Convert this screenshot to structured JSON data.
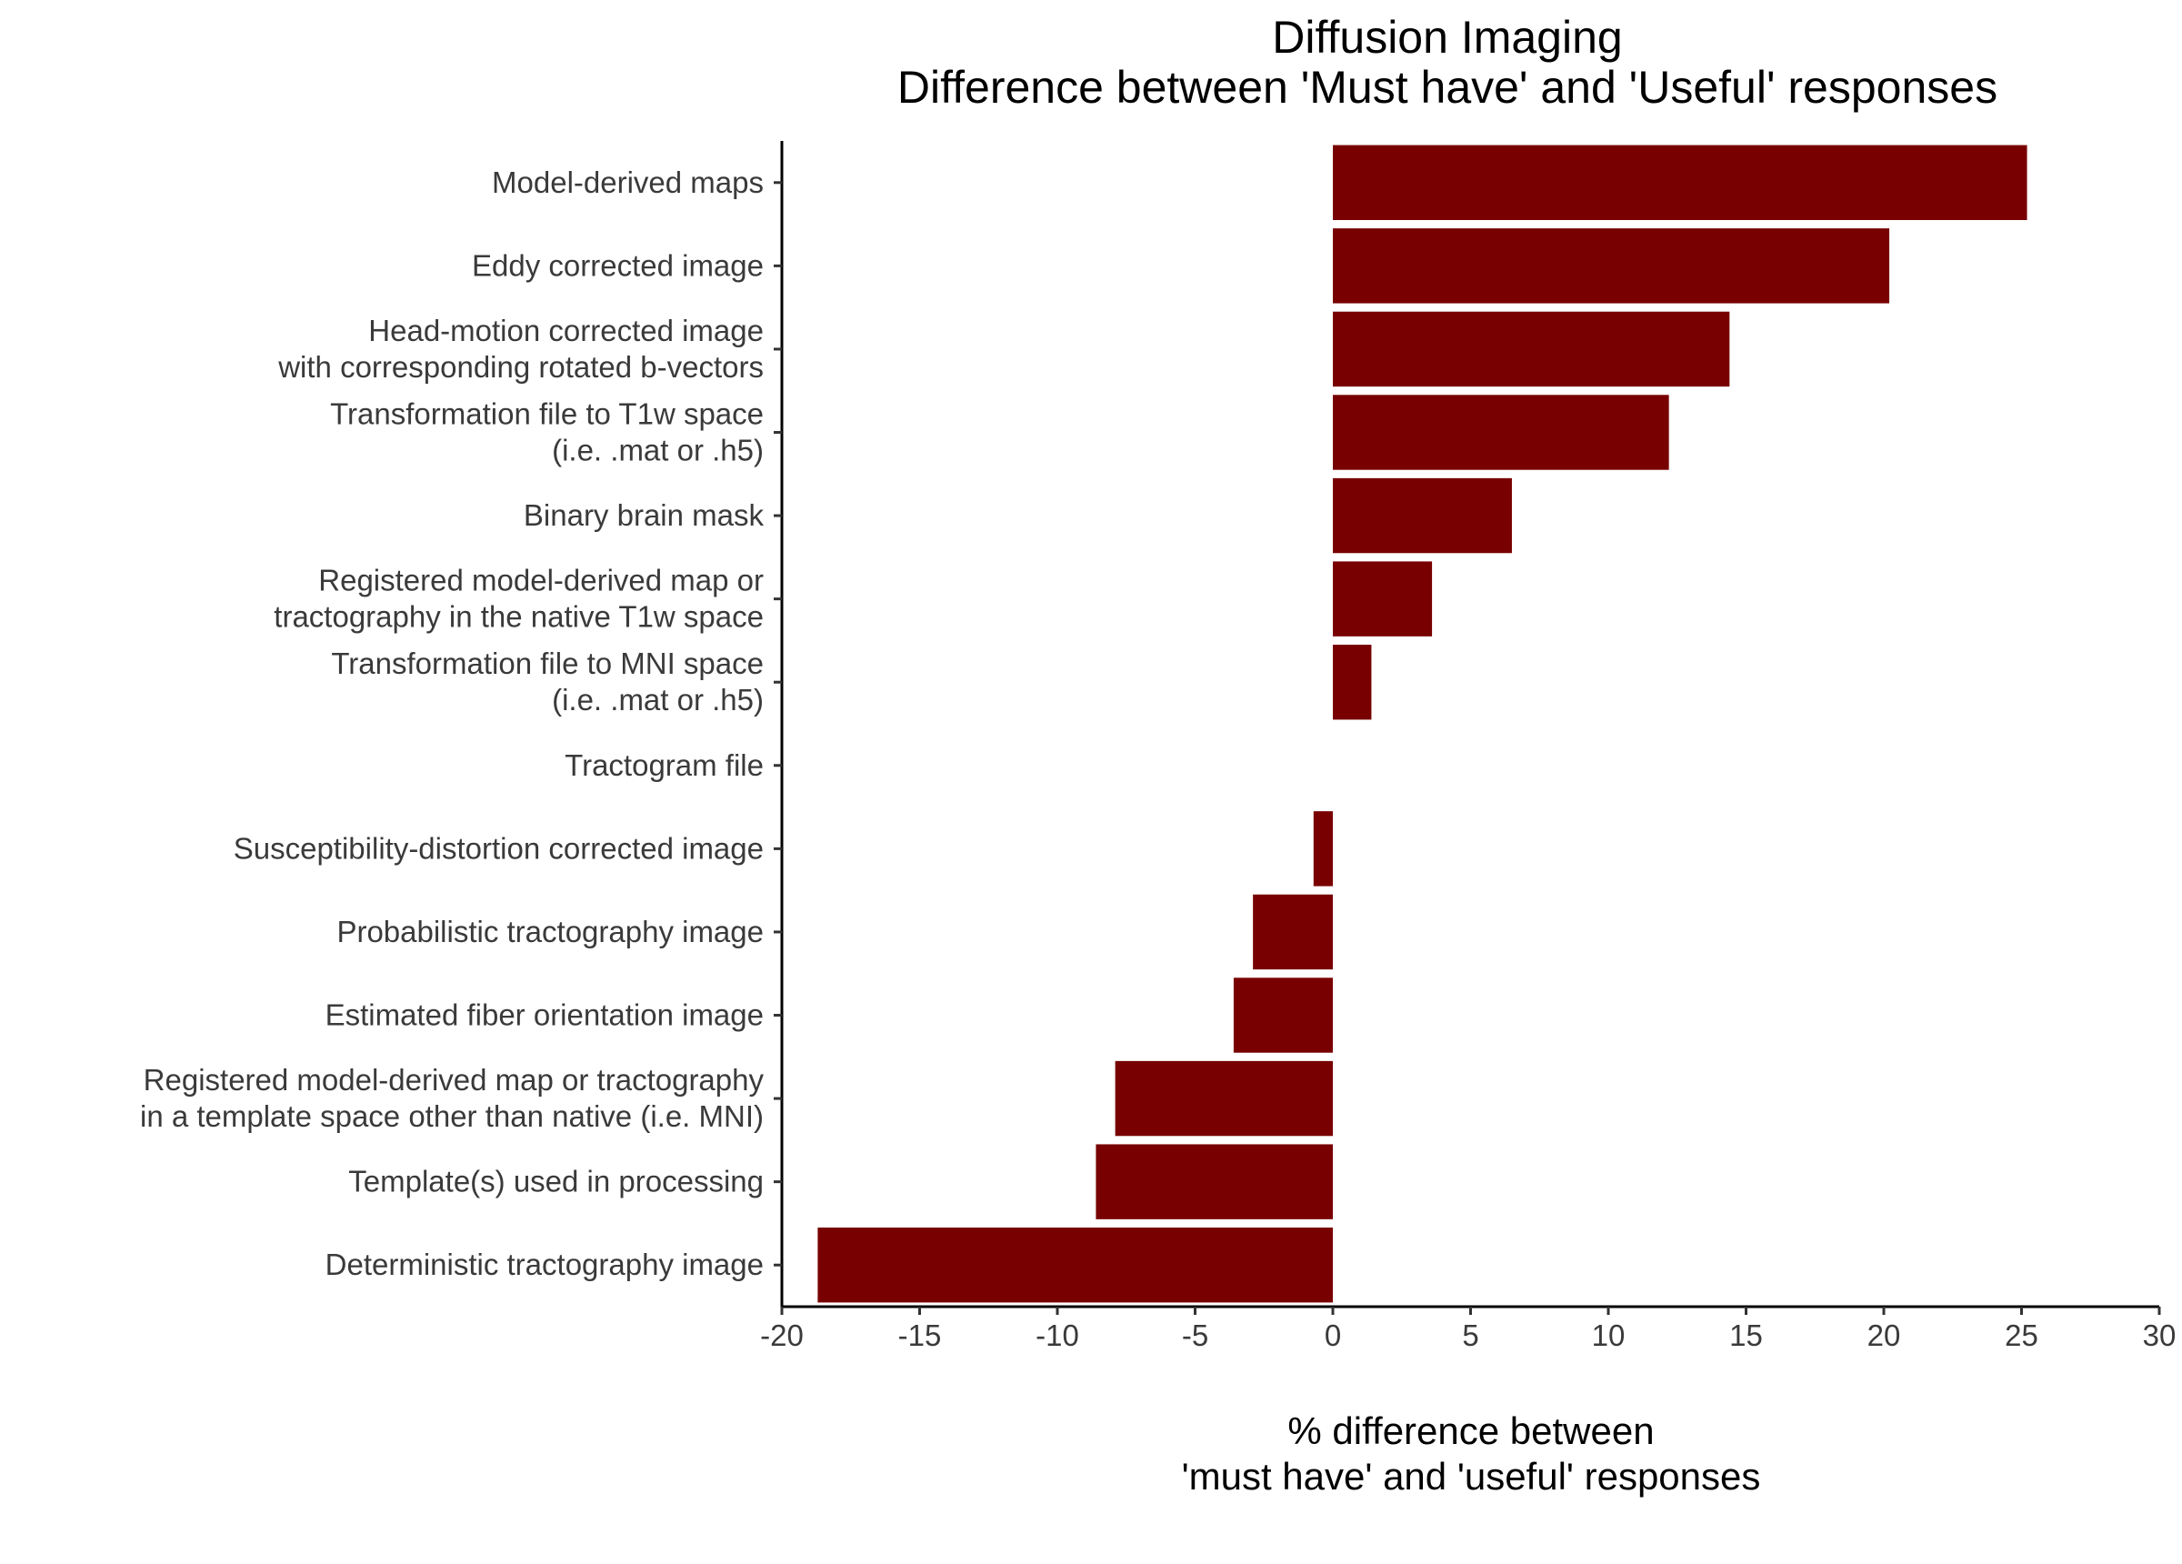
{
  "chart_data": {
    "type": "bar",
    "orientation": "horizontal",
    "title": [
      "Diffusion Imaging",
      "Difference between 'Must have' and 'Useful' responses"
    ],
    "xlabel": [
      "% difference between",
      "'must have' and 'useful' responses"
    ],
    "ylabel": "",
    "xlim": [
      -20,
      30
    ],
    "xticks": [
      -20,
      -15,
      -10,
      -5,
      0,
      5,
      10,
      15,
      20,
      25,
      30
    ],
    "grid": false,
    "legend": "none",
    "bar_color": "#780000",
    "categories": [
      [
        "Model-derived maps"
      ],
      [
        "Eddy corrected image"
      ],
      [
        "Head-motion corrected image",
        "with corresponding rotated b-vectors"
      ],
      [
        "Transformation file to T1w space",
        "(i.e. .mat or .h5)"
      ],
      [
        "Binary brain mask"
      ],
      [
        "Registered model-derived map or",
        "tractography in the native T1w space"
      ],
      [
        "Transformation file to MNI space",
        "(i.e. .mat or .h5)"
      ],
      [
        "Tractogram file"
      ],
      [
        "Susceptibility-distortion corrected image"
      ],
      [
        "Probabilistic tractography image"
      ],
      [
        "Estimated fiber orientation image"
      ],
      [
        "Registered model-derived map or tractography",
        "in a template space other than native (i.e. MNI)"
      ],
      [
        "Template(s) used in processing"
      ],
      [
        "Deterministic tractography image"
      ]
    ],
    "values": [
      25.2,
      20.2,
      14.4,
      12.2,
      6.5,
      3.6,
      1.4,
      0,
      -0.7,
      -2.9,
      -3.6,
      -7.9,
      -8.6,
      -18.7
    ]
  }
}
